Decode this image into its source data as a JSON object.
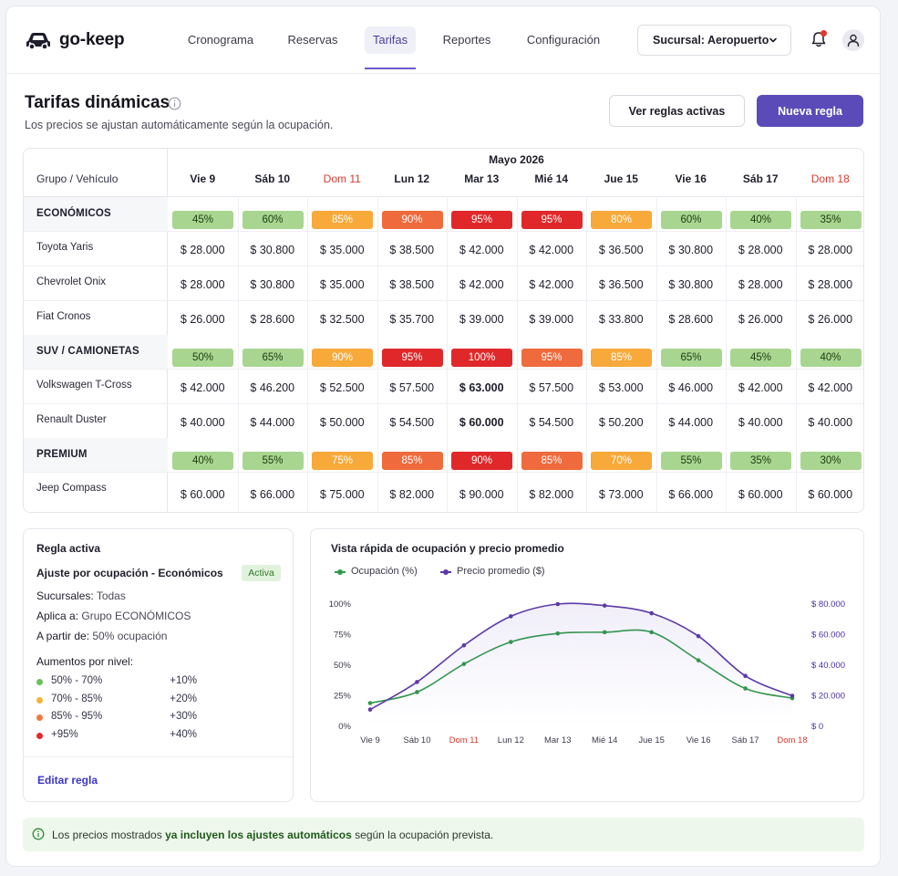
{
  "brand": {
    "name": "go-keep"
  },
  "nav": [
    {
      "label": "Cronograma",
      "active": false
    },
    {
      "label": "Reservas",
      "active": false
    },
    {
      "label": "Tarifas",
      "active": true
    },
    {
      "label": "Reportes",
      "active": false
    },
    {
      "label": "Configuración",
      "active": false
    }
  ],
  "branch": {
    "label": "Sucursal: Aeropuerto"
  },
  "icons": {
    "notification": "bell-icon",
    "user": "user-icon",
    "info": "info-icon"
  },
  "page": {
    "title": "Tarifas dinámicas",
    "subtitle": "Los precios se ajustan automáticamente según la ocupación.",
    "btn_rules": "Ver reglas activas",
    "btn_new": "Nueva regla"
  },
  "table": {
    "month": "Mayo 2026",
    "group_header": "Grupo / Vehículo",
    "days": [
      {
        "label": "Vie 9",
        "sunday": false
      },
      {
        "label": "Sáb 10",
        "sunday": false
      },
      {
        "label": "Dom 11",
        "sunday": true
      },
      {
        "label": "Lun 12",
        "sunday": false
      },
      {
        "label": "Mar 13",
        "sunday": false
      },
      {
        "label": "Mié 14",
        "sunday": false
      },
      {
        "label": "Jue 15",
        "sunday": false
      },
      {
        "label": "Vie 16",
        "sunday": false
      },
      {
        "label": "Sáb 17",
        "sunday": false
      },
      {
        "label": "Dom 18",
        "sunday": true
      }
    ],
    "groups": [
      {
        "name": "ECONÓMICOS",
        "occupancy": [
          "45%",
          "60%",
          "85%",
          "90%",
          "95%",
          "95%",
          "80%",
          "60%",
          "40%",
          "35%"
        ],
        "levels": [
          "g",
          "g",
          "y",
          "o",
          "r",
          "r",
          "y",
          "g",
          "g",
          "g"
        ],
        "vehicles": [
          {
            "name": "Toyota Yaris",
            "prices": [
              "$ 28.000",
              "$ 30.800",
              "$ 35.000",
              "$ 38.500",
              "$ 42.000",
              "$ 42.000",
              "$ 36.500",
              "$ 30.800",
              "$ 28.000",
              "$ 28.000"
            ]
          },
          {
            "name": "Chevrolet Onix",
            "prices": [
              "$ 28.000",
              "$ 30.800",
              "$ 35.000",
              "$ 38.500",
              "$ 42.000",
              "$ 42.000",
              "$ 36.500",
              "$ 30.800",
              "$ 28.000",
              "$ 28.000"
            ]
          },
          {
            "name": "Fiat Cronos",
            "prices": [
              "$ 26.000",
              "$ 28.600",
              "$ 32.500",
              "$ 35.700",
              "$ 39.000",
              "$ 39.000",
              "$ 33.800",
              "$ 28.600",
              "$ 26.000",
              "$ 26.000"
            ]
          }
        ]
      },
      {
        "name": "SUV / CAMIONETAS",
        "occupancy": [
          "50%",
          "65%",
          "90%",
          "95%",
          "100%",
          "95%",
          "85%",
          "65%",
          "45%",
          "40%"
        ],
        "levels": [
          "g",
          "g",
          "y",
          "r",
          "r",
          "o",
          "y",
          "g",
          "g",
          "g"
        ],
        "vehicles": [
          {
            "name": "Volkswagen T-Cross",
            "prices": [
              "$ 42.000",
              "$ 46.200",
              "$ 52.500",
              "$ 57.500",
              "$ 63.000",
              "$ 57.500",
              "$ 53.000",
              "$ 46.000",
              "$ 42.000",
              "$ 42.000"
            ]
          },
          {
            "name": "Renault Duster",
            "prices": [
              "$ 40.000",
              "$ 44.000",
              "$ 50.000",
              "$ 54.500",
              "$ 60.000",
              "$ 54.500",
              "$ 50.200",
              "$ 44.000",
              "$ 40.000",
              "$ 40.000"
            ]
          }
        ]
      },
      {
        "name": "PREMIUM",
        "occupancy": [
          "40%",
          "55%",
          "75%",
          "85%",
          "90%",
          "85%",
          "70%",
          "55%",
          "35%",
          "30%"
        ],
        "levels": [
          "g",
          "g",
          "y",
          "o",
          "r",
          "o",
          "y",
          "g",
          "g",
          "g"
        ],
        "vehicles": [
          {
            "name": "Jeep Compass",
            "prices": [
              "$ 60.000",
              "$ 66.000",
              "$ 75.000",
              "$ 82.000",
              "$ 90.000",
              "$ 82.000",
              "$ 73.000",
              "$ 66.000",
              "$ 60.000",
              "$ 60.000"
            ]
          }
        ]
      }
    ]
  },
  "rule": {
    "title": "Regla activa",
    "name": "Ajuste por ocupación - Económicos",
    "badge": "Activa",
    "branches_label": "Sucursales:",
    "branches_value": "Todas",
    "applies_label": "Aplica a:",
    "applies_value": "Grupo ECONÓMICOS",
    "from_label": "A partir de:",
    "from_value": "50% ocupación",
    "levels_title": "Aumentos por nivel:",
    "levels": [
      {
        "range": "50% - 70%",
        "increase": "+10%",
        "color": "#6abf5a"
      },
      {
        "range": "70% - 85%",
        "increase": "+20%",
        "color": "#f4b43a"
      },
      {
        "range": "85% - 95%",
        "increase": "+30%",
        "color": "#ef7a3c"
      },
      {
        "range": "+95%",
        "increase": "+40%",
        "color": "#e0282a"
      }
    ],
    "edit_label": "Editar regla"
  },
  "chart_title": "Vista rápida de ocupación y precio promedio",
  "chart_data": {
    "type": "line",
    "categories": [
      "Vie 9",
      "Sáb 10",
      "Dom 11",
      "Lun 12",
      "Mar 13",
      "Mié 14",
      "Jue 15",
      "Vie 16",
      "Sáb 17",
      "Dom 18"
    ],
    "series": [
      {
        "name": "Ocupación (%)",
        "axis": "left",
        "color": "#2f9a48",
        "values": [
          19,
          28,
          51,
          69,
          76,
          77,
          77,
          54,
          31,
          23
        ]
      },
      {
        "name": "Precio promedio ($)",
        "axis": "right",
        "color": "#5b3aa8",
        "values": [
          31000,
          49000,
          73000,
          92000,
          100000,
          99000,
          94000,
          79000,
          53000,
          40000
        ]
      }
    ],
    "y_left": {
      "ticks": [
        "0%",
        "25%",
        "50%",
        "75%",
        "100%"
      ],
      "range": [
        0,
        100
      ]
    },
    "y_right": {
      "ticks": [
        "$ 0",
        "$ 20.000",
        "$ 40.000",
        "$ 60.000",
        "$ 80.000"
      ],
      "range": [
        0,
        100000
      ]
    },
    "sunday_indexes": [
      2,
      9
    ],
    "sunday_color": "#d9392f"
  },
  "note": {
    "before": "Los precios mostrados ",
    "bold": "ya incluyen los ajustes automáticos",
    "after": " según la ocupación prevista."
  }
}
